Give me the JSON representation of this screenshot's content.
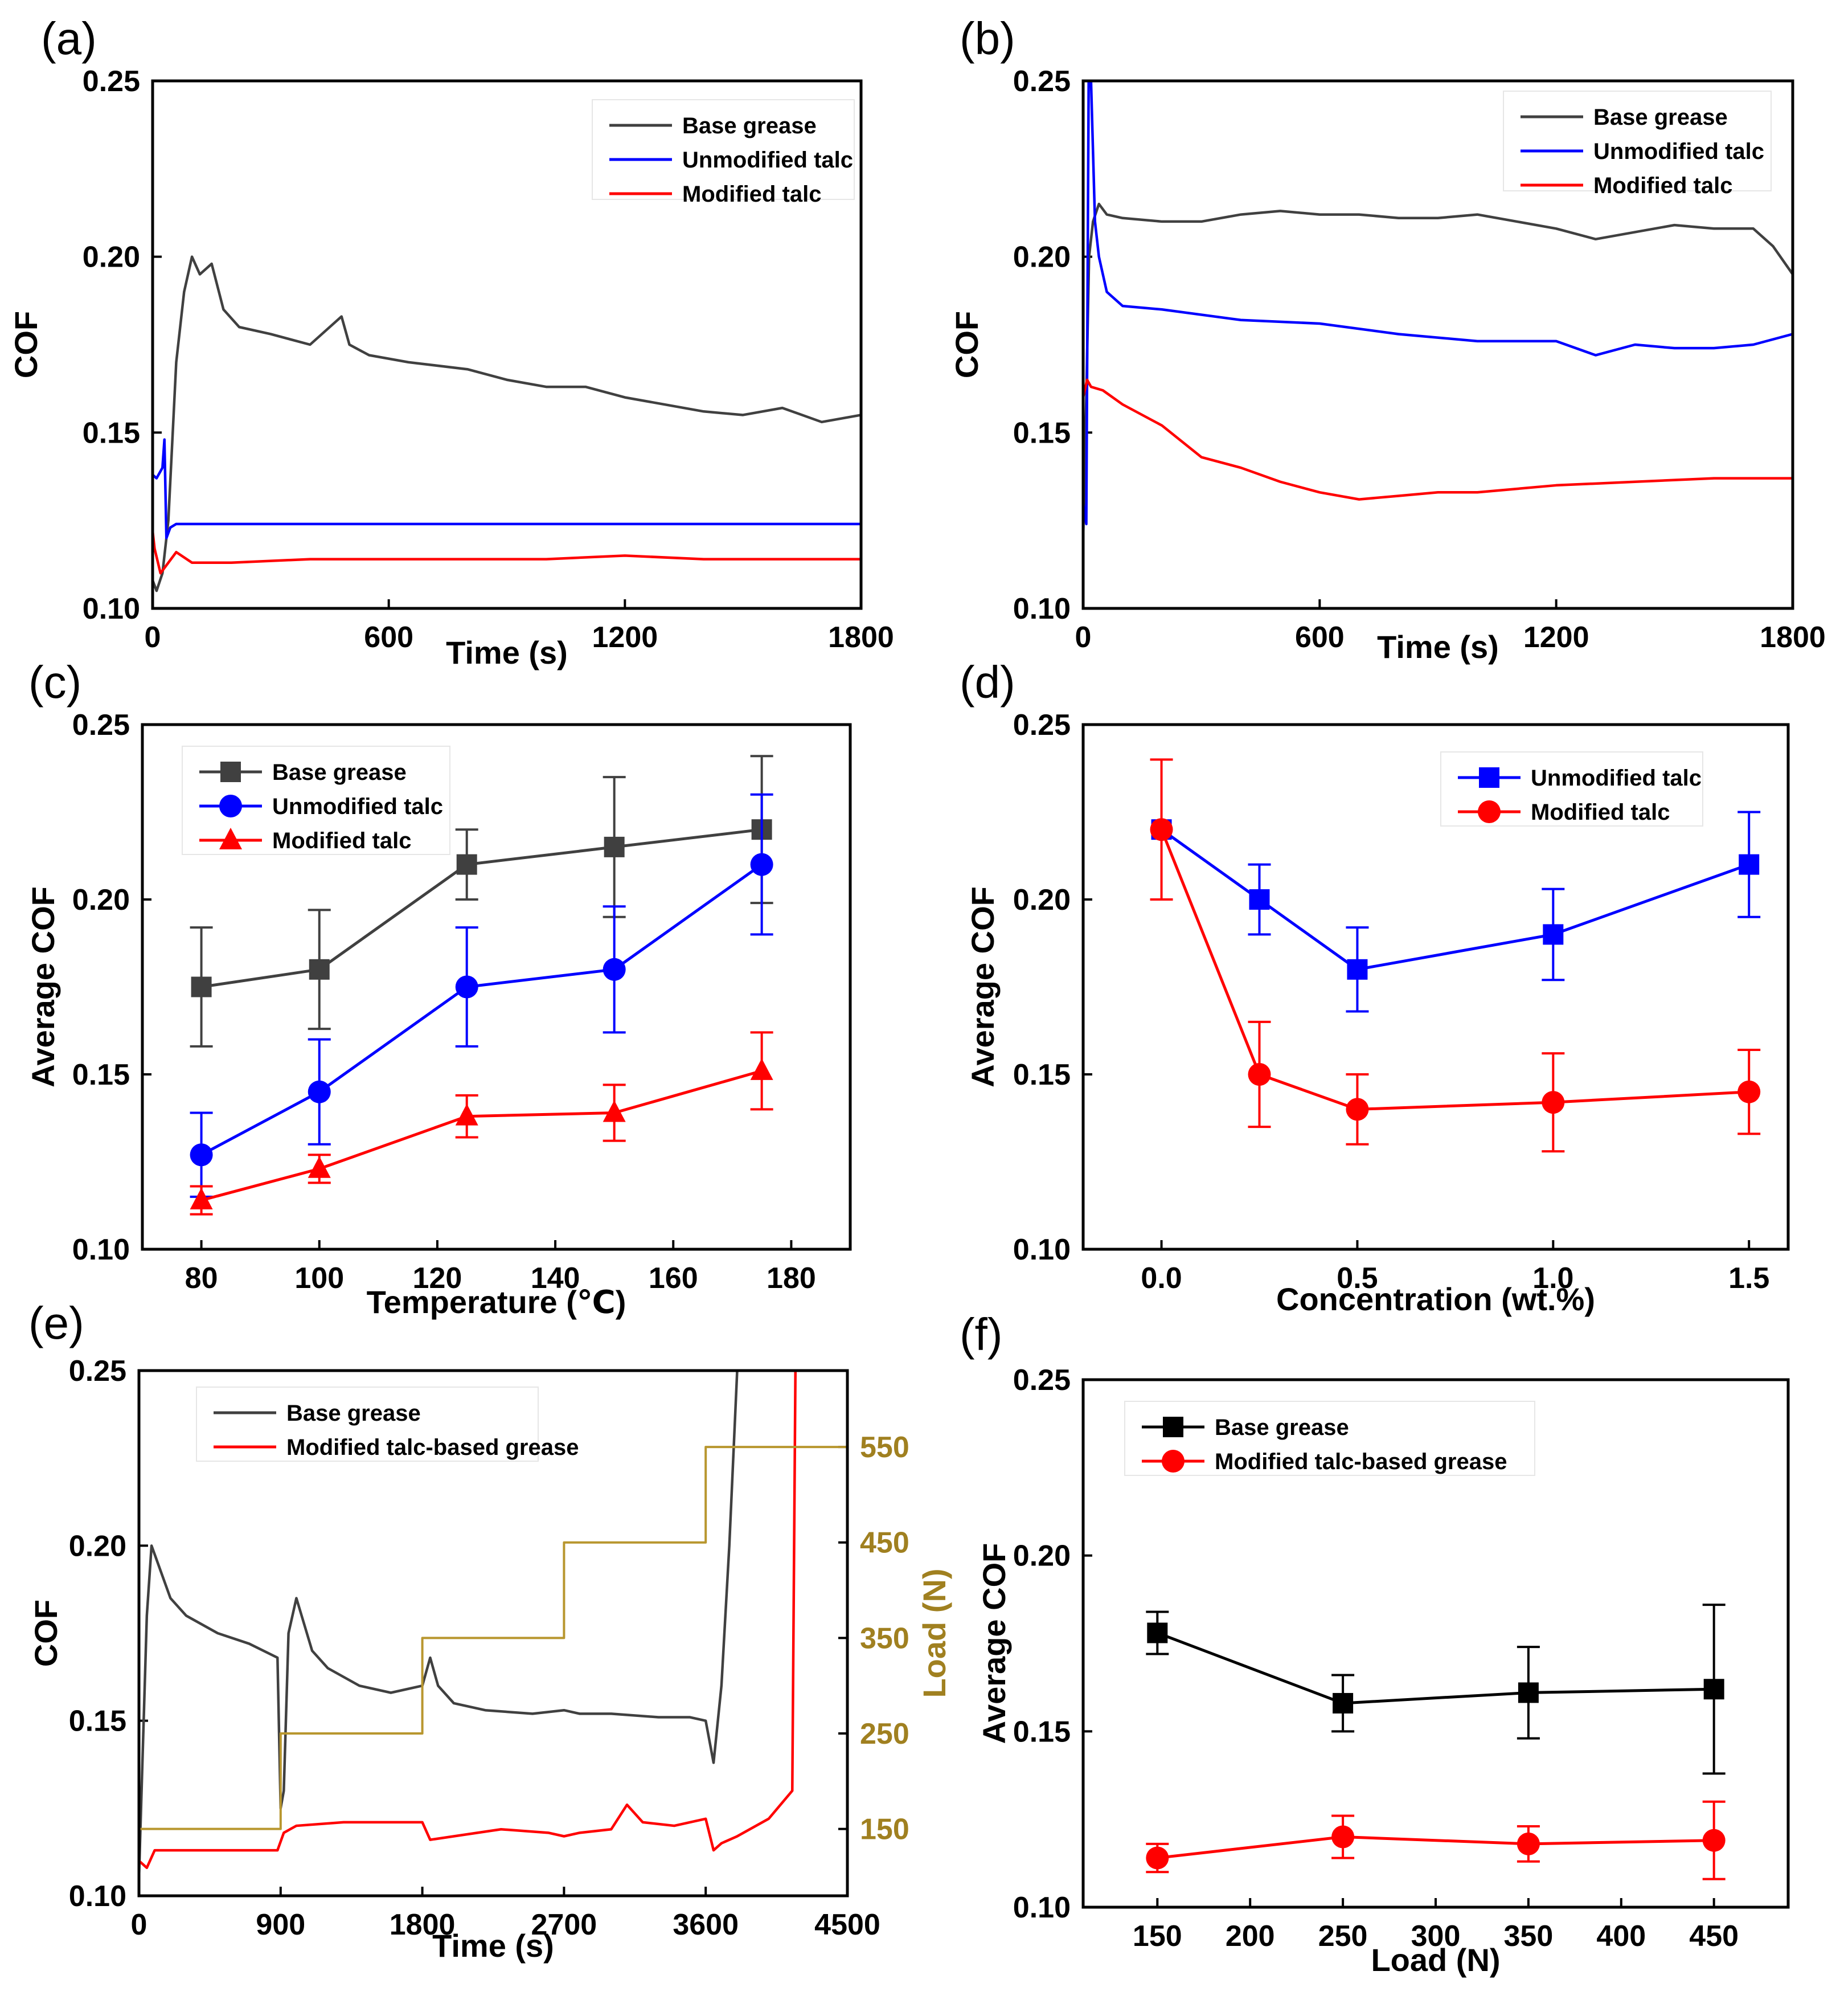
{
  "chart_data": [
    {
      "panel": "(a)",
      "type": "line",
      "xlabel": "Time (s)",
      "ylabel": "COF",
      "xlim": [
        0,
        1800
      ],
      "ylim": [
        0.1,
        0.25
      ],
      "xticks": [
        "0",
        "600",
        "1200",
        "1800"
      ],
      "yticks": [
        "0.10",
        "0.15",
        "0.20",
        "0.25"
      ],
      "series": [
        {
          "name": "Base grease",
          "color": "#404040",
          "x": [
            0,
            10,
            25,
            40,
            60,
            80,
            100,
            120,
            150,
            180,
            220,
            300,
            400,
            480,
            500,
            550,
            650,
            800,
            900,
            1000,
            1100,
            1200,
            1300,
            1400,
            1500,
            1600,
            1700,
            1800
          ],
          "y": [
            0.108,
            0.105,
            0.11,
            0.125,
            0.17,
            0.19,
            0.2,
            0.195,
            0.198,
            0.185,
            0.18,
            0.178,
            0.175,
            0.183,
            0.175,
            0.172,
            0.17,
            0.168,
            0.165,
            0.163,
            0.163,
            0.16,
            0.158,
            0.156,
            0.155,
            0.157,
            0.153,
            0.155
          ]
        },
        {
          "name": "Unmodified talc",
          "color": "#0000ff",
          "x": [
            0,
            10,
            25,
            30,
            35,
            45,
            60,
            100,
            200,
            400,
            800,
            1200,
            1600,
            1800
          ],
          "y": [
            0.138,
            0.137,
            0.14,
            0.148,
            0.12,
            0.123,
            0.124,
            0.124,
            0.124,
            0.124,
            0.124,
            0.124,
            0.124,
            0.124
          ]
        },
        {
          "name": "Modified talc",
          "color": "#ff0000",
          "x": [
            0,
            5,
            20,
            40,
            60,
            100,
            200,
            400,
            600,
            800,
            1000,
            1200,
            1400,
            1600,
            1800
          ],
          "y": [
            0.122,
            0.117,
            0.11,
            0.113,
            0.116,
            0.113,
            0.113,
            0.114,
            0.114,
            0.114,
            0.114,
            0.115,
            0.114,
            0.114,
            0.114
          ]
        }
      ]
    },
    {
      "panel": "(b)",
      "type": "line",
      "xlabel": "Time (s)",
      "ylabel": "COF",
      "xlim": [
        0,
        1800
      ],
      "ylim": [
        0.1,
        0.25
      ],
      "xticks": [
        "0",
        "600",
        "1200",
        "1800"
      ],
      "yticks": [
        "0.10",
        "0.15",
        "0.20",
        "0.25"
      ],
      "series": [
        {
          "name": "Base grease",
          "color": "#404040",
          "x": [
            0,
            8,
            15,
            25,
            40,
            60,
            100,
            200,
            300,
            400,
            500,
            600,
            700,
            800,
            900,
            1000,
            1100,
            1200,
            1300,
            1400,
            1500,
            1600,
            1700,
            1750,
            1800
          ],
          "y": [
            0.12,
            0.16,
            0.2,
            0.21,
            0.215,
            0.212,
            0.211,
            0.21,
            0.21,
            0.212,
            0.213,
            0.212,
            0.212,
            0.211,
            0.211,
            0.212,
            0.21,
            0.208,
            0.205,
            0.207,
            0.209,
            0.208,
            0.208,
            0.203,
            0.195
          ]
        },
        {
          "name": "Unmodified talc",
          "color": "#0000ff",
          "x": [
            0,
            8,
            14,
            20,
            30,
            40,
            60,
            100,
            200,
            400,
            600,
            800,
            1000,
            1200,
            1300,
            1400,
            1500,
            1600,
            1700,
            1800
          ],
          "y": [
            0.13,
            0.124,
            0.25,
            0.25,
            0.21,
            0.2,
            0.19,
            0.186,
            0.185,
            0.182,
            0.181,
            0.178,
            0.176,
            0.176,
            0.172,
            0.175,
            0.174,
            0.174,
            0.175,
            0.178
          ]
        },
        {
          "name": "Modified talc",
          "color": "#ff0000",
          "x": [
            0,
            10,
            20,
            50,
            100,
            200,
            300,
            400,
            500,
            600,
            700,
            800,
            900,
            1000,
            1200,
            1400,
            1600,
            1800
          ],
          "y": [
            0.16,
            0.165,
            0.163,
            0.162,
            0.158,
            0.152,
            0.143,
            0.14,
            0.136,
            0.133,
            0.131,
            0.132,
            0.133,
            0.133,
            0.135,
            0.136,
            0.137,
            0.137
          ]
        }
      ]
    },
    {
      "panel": "(c)",
      "type": "line",
      "xlabel": "Temperature (℃)",
      "ylabel": "Average COF",
      "xlim": [
        70,
        190
      ],
      "ylim": [
        0.1,
        0.25
      ],
      "xticks": [
        "80",
        "100",
        "120",
        "140",
        "160",
        "180"
      ],
      "yticks": [
        "0.10",
        "0.15",
        "0.20",
        "0.25"
      ],
      "x": [
        80,
        100,
        125,
        150,
        175
      ],
      "series": [
        {
          "name": "Base grease",
          "color": "#404040",
          "marker": "square",
          "values": [
            0.175,
            0.18,
            0.21,
            0.215,
            0.22
          ],
          "errors": [
            0.017,
            0.017,
            0.01,
            0.02,
            0.021
          ]
        },
        {
          "name": "Unmodified talc",
          "color": "#0000ff",
          "marker": "circle",
          "values": [
            0.127,
            0.145,
            0.175,
            0.18,
            0.21
          ],
          "errors": [
            0.012,
            0.015,
            0.017,
            0.018,
            0.02
          ]
        },
        {
          "name": "Modified talc",
          "color": "#ff0000",
          "marker": "triangle",
          "values": [
            0.114,
            0.123,
            0.138,
            0.139,
            0.151
          ],
          "errors": [
            0.004,
            0.004,
            0.006,
            0.008,
            0.011
          ]
        }
      ]
    },
    {
      "panel": "(d)",
      "type": "line",
      "xlabel": "Concentration (wt.%)",
      "ylabel": "Average COF",
      "xlim": [
        -0.2,
        1.6
      ],
      "ylim": [
        0.1,
        0.25
      ],
      "xticks": [
        "0.0",
        "0.5",
        "1.0",
        "1.5"
      ],
      "yticks": [
        "0.10",
        "0.15",
        "0.20",
        "0.25"
      ],
      "x": [
        0,
        0.25,
        0.5,
        1.0,
        1.5
      ],
      "series": [
        {
          "name": "Unmodified talc",
          "color": "#0000ff",
          "marker": "square",
          "values": [
            0.22,
            0.2,
            0.18,
            0.19,
            0.21
          ],
          "errors": [
            0.0,
            0.01,
            0.012,
            0.013,
            0.015
          ]
        },
        {
          "name": "Modified talc",
          "color": "#ff0000",
          "marker": "circle",
          "values": [
            0.22,
            0.15,
            0.14,
            0.142,
            0.145
          ],
          "errors": [
            0.02,
            0.015,
            0.01,
            0.014,
            0.012
          ]
        }
      ]
    },
    {
      "panel": "(e)",
      "type": "line",
      "xlabel": "Time (s)",
      "ylabel": "COF",
      "y2label": "Load (N)",
      "xlim": [
        0,
        4500
      ],
      "ylim": [
        0.1,
        0.25
      ],
      "y2lim": [
        80,
        630
      ],
      "xticks": [
        "0",
        "900",
        "1800",
        "2700",
        "3600",
        "4500"
      ],
      "yticks": [
        "0.10",
        "0.15",
        "0.20",
        "0.25"
      ],
      "y2ticks": [
        "150",
        "250",
        "350",
        "450",
        "550"
      ],
      "series": [
        {
          "name": "Base grease",
          "color": "#404040",
          "x": [
            0,
            50,
            80,
            120,
            200,
            300,
            500,
            700,
            880,
            900,
            920,
            950,
            1000,
            1100,
            1200,
            1400,
            1600,
            1800,
            1850,
            1900,
            2000,
            2200,
            2500,
            2700,
            2800,
            3000,
            3300,
            3500,
            3600,
            3650,
            3700,
            3750,
            3800
          ],
          "y": [
            0.105,
            0.18,
            0.2,
            0.195,
            0.185,
            0.18,
            0.175,
            0.172,
            0.168,
            0.125,
            0.13,
            0.175,
            0.185,
            0.17,
            0.165,
            0.16,
            0.158,
            0.16,
            0.168,
            0.16,
            0.155,
            0.153,
            0.152,
            0.153,
            0.152,
            0.152,
            0.151,
            0.151,
            0.15,
            0.138,
            0.16,
            0.2,
            0.25
          ]
        },
        {
          "name": "Modified talc-based grease",
          "color": "#ff0000",
          "x": [
            0,
            50,
            100,
            300,
            600,
            880,
            920,
            1000,
            1300,
            1600,
            1800,
            1850,
            2000,
            2300,
            2600,
            2700,
            2800,
            3000,
            3100,
            3200,
            3400,
            3600,
            3650,
            3700,
            3800,
            4000,
            4150,
            4170,
            4200
          ],
          "y": [
            0.11,
            0.108,
            0.113,
            0.113,
            0.113,
            0.113,
            0.118,
            0.12,
            0.121,
            0.121,
            0.121,
            0.116,
            0.117,
            0.119,
            0.118,
            0.117,
            0.118,
            0.119,
            0.126,
            0.121,
            0.12,
            0.122,
            0.113,
            0.115,
            0.117,
            0.122,
            0.13,
            0.25,
            0.25
          ]
        },
        {
          "name": "Load",
          "color": "#b8962e",
          "axis": "y2",
          "x": [
            0,
            900,
            900,
            1800,
            1800,
            2700,
            2700,
            3600,
            3600,
            4500
          ],
          "y": [
            150,
            150,
            250,
            250,
            350,
            350,
            450,
            450,
            550,
            550
          ]
        }
      ]
    },
    {
      "panel": "(f)",
      "type": "line",
      "xlabel": "Load (N)",
      "ylabel": "Average COF",
      "xlim": [
        110,
        490
      ],
      "ylim": [
        0.1,
        0.25
      ],
      "xticks": [
        "150",
        "200",
        "250",
        "300",
        "350",
        "400",
        "450"
      ],
      "yticks": [
        "0.10",
        "0.15",
        "0.20",
        "0.25"
      ],
      "x": [
        150,
        250,
        350,
        450
      ],
      "series": [
        {
          "name": "Base grease",
          "color": "#000000",
          "marker": "square",
          "values": [
            0.178,
            0.158,
            0.161,
            0.162
          ],
          "errors": [
            0.006,
            0.008,
            0.013,
            0.024
          ]
        },
        {
          "name": "Modified talc-based grease",
          "color": "#ff0000",
          "marker": "circle",
          "values": [
            0.114,
            0.12,
            0.118,
            0.119
          ],
          "errors": [
            0.004,
            0.006,
            0.005,
            0.011
          ]
        }
      ]
    }
  ]
}
